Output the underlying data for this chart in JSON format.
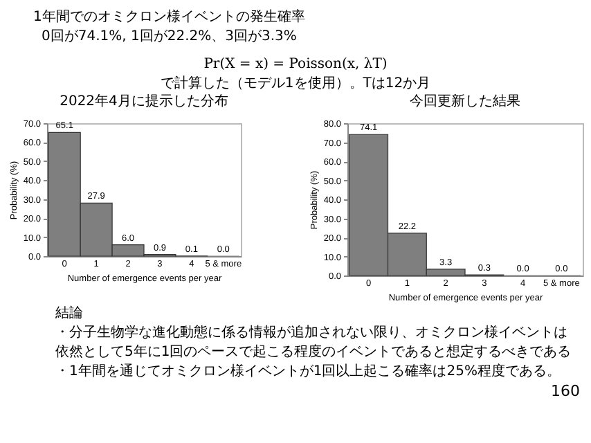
{
  "chart_data": [
    {
      "type": "other",
      "title": "1年間でのオミクロン様イベントの発生確率",
      "subtitle": "0回が74.1%, 1回が22.2%、3回が3.3%",
      "annotations": [
        "Pr(X = x) = Poisson(x, λT)",
        "で計算した（モデル1を使用）。Tは12か月"
      ]
    },
    {
      "type": "bar",
      "title": "2022年4月に提示した分布",
      "xlabel": "Number of emergence events per year",
      "ylabel": "Probability (%)",
      "categories": [
        "0",
        "1",
        "2",
        "3",
        "4",
        "5 & more"
      ],
      "color": "#7f7f7f",
      "values": [
        65.1,
        27.9,
        6.0,
        0.9,
        0.1,
        0.0
      ],
      "value_labels": [
        "65.1",
        "27.9",
        "6.0",
        "0.9",
        "0.1",
        "0.0"
      ],
      "ylim": [
        0,
        70
      ],
      "yticks": [
        {
          "value": 0,
          "label": "0.0"
        },
        {
          "value": 10,
          "label": "10.0"
        },
        {
          "value": 20,
          "label": "20.0"
        },
        {
          "value": 30,
          "label": "30.0"
        },
        {
          "value": 40,
          "label": "40.0"
        },
        {
          "value": 50,
          "label": "50.0"
        },
        {
          "value": 60,
          "label": "60.0"
        },
        {
          "value": 70,
          "label": "70.0"
        }
      ]
    },
    {
      "type": "bar",
      "title": "今回更新した結果",
      "xlabel": "Number of emergence events per year",
      "ylabel": "Probability (%)",
      "categories": [
        "0",
        "1",
        "2",
        "3",
        "4",
        "5 & more"
      ],
      "color": "#7f7f7f",
      "values": [
        74.1,
        22.2,
        3.3,
        0.3,
        0.0,
        0.0
      ],
      "value_labels": [
        "74.1",
        "22.2",
        "3.3",
        "0.3",
        "0.0",
        "0.0"
      ],
      "ylim": [
        0,
        80
      ],
      "yticks": [
        {
          "value": 0,
          "label": "0.0"
        },
        {
          "value": 10,
          "label": "10.0"
        },
        {
          "value": 20,
          "label": "20.0"
        },
        {
          "value": 30,
          "label": "30.0"
        },
        {
          "value": 40,
          "label": "40.0"
        },
        {
          "value": 50,
          "label": "50.0"
        },
        {
          "value": 60,
          "label": "60.0"
        },
        {
          "value": 70,
          "label": "70.0"
        },
        {
          "value": 80,
          "label": "80.0"
        }
      ]
    },
    {
      "type": "other",
      "title": "結論",
      "annotations": [
        "・分子生物学な進化動態に係る情報が追加されない限り、オミクロン様イベントは",
        "依然として5年に1回のペースで起こる程度のイベントであると想定するべきである",
        "・1年間を通じてオミクロン様イベントが1回以上起こる確率は25%程度である。",
        "160"
      ]
    }
  ]
}
